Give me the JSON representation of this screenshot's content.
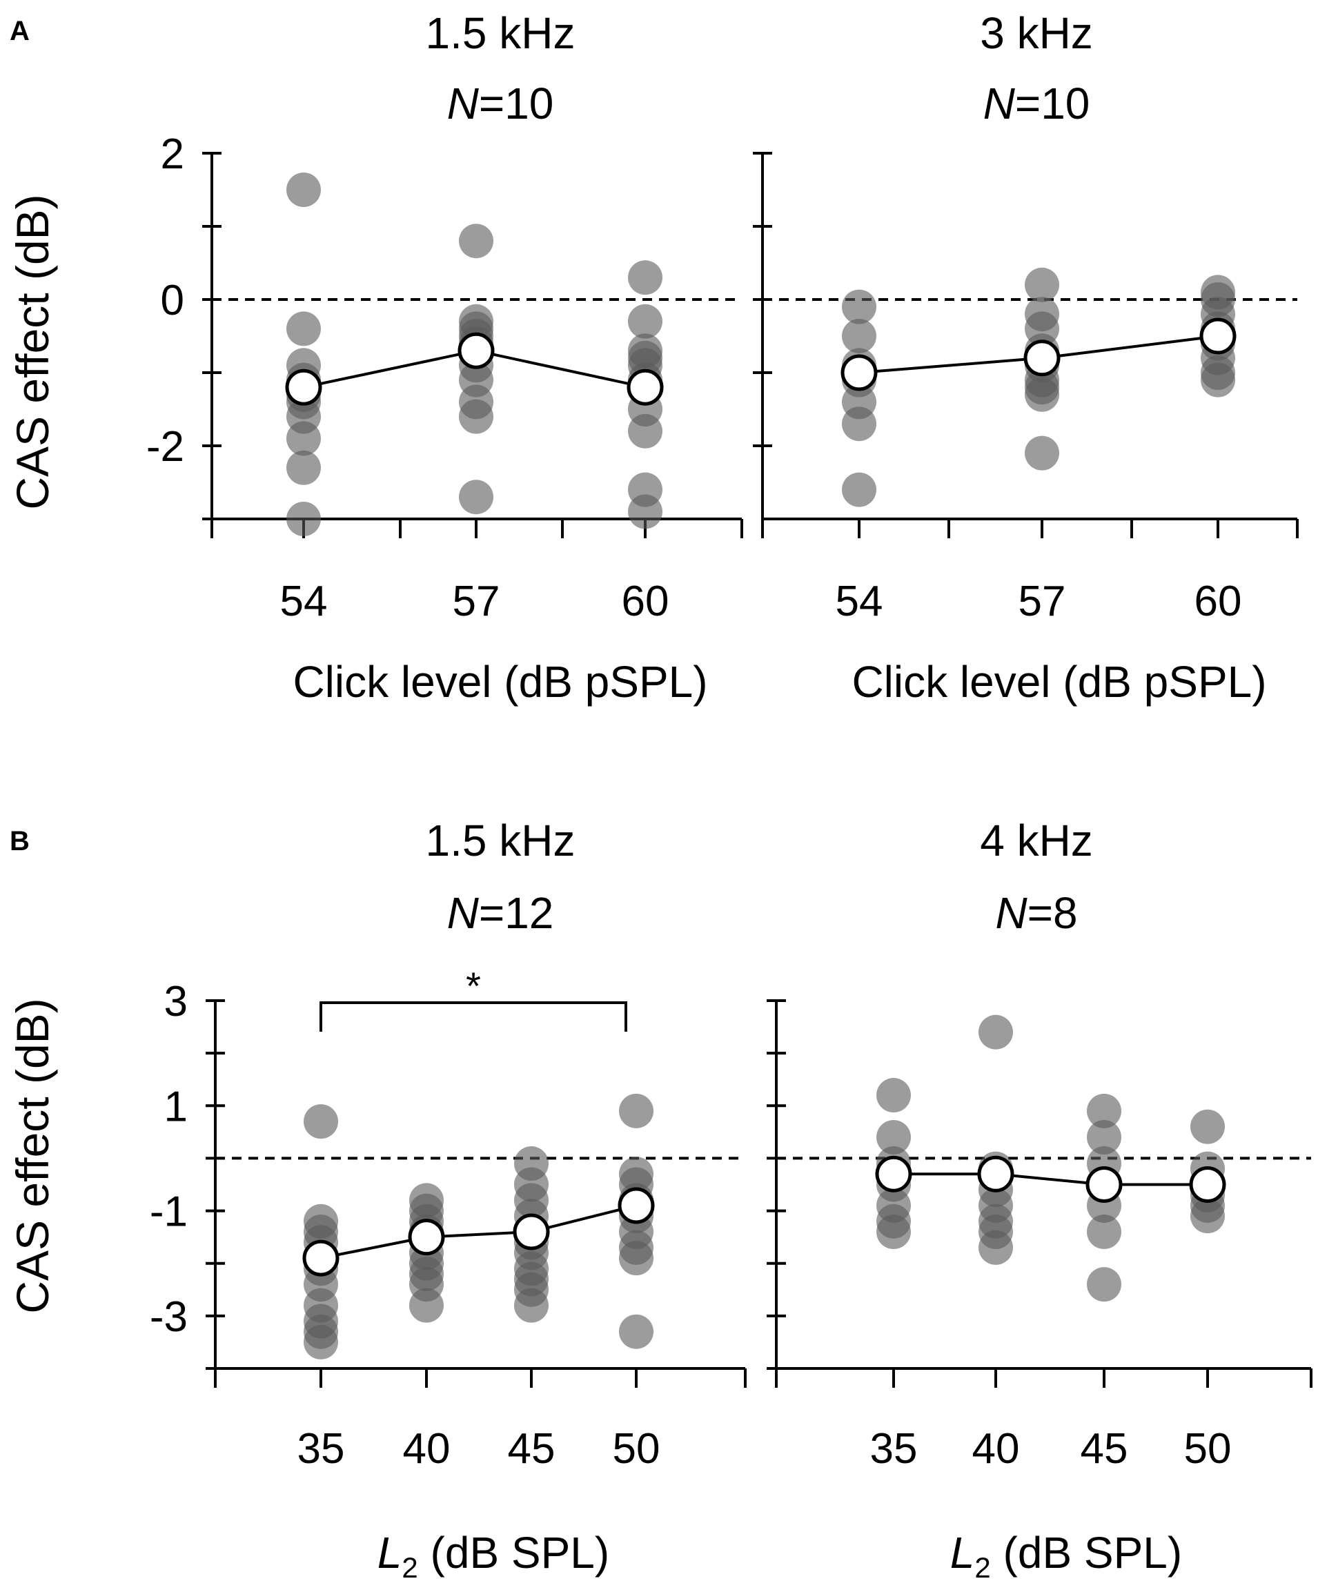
{
  "figure": {
    "panel_labels": [
      "A",
      "B"
    ],
    "colors": {
      "points": "#5a5a5a",
      "mean_fill": "#ffffff",
      "line": "#000000",
      "axis": "#000000"
    }
  },
  "chart_data": [
    {
      "type": "scatter",
      "panel": "A",
      "title": "1.5 kHz",
      "n_label": "N=10",
      "n_italic": "N",
      "n_value": "=10",
      "xlabel": "Click level (dB pSPL)",
      "ylabel": "CAS effect (dB)",
      "categories": [
        "54",
        "57",
        "60"
      ],
      "ylim": [
        -3,
        2
      ],
      "yticks": [
        2,
        0,
        -2
      ],
      "yminor": [
        1,
        -1,
        -3
      ],
      "reference_line": 0,
      "individual": [
        [
          1.5,
          -0.4,
          -0.9,
          -1.1,
          -1.3,
          -1.4,
          -1.6,
          -1.9,
          -2.3,
          -3.0
        ],
        [
          0.8,
          -0.3,
          -0.4,
          -0.5,
          -0.6,
          -0.9,
          -1.1,
          -1.4,
          -1.6,
          -2.7
        ],
        [
          0.3,
          -0.3,
          -0.7,
          -0.8,
          -0.9,
          -1.1,
          -1.5,
          -1.8,
          -2.6,
          -2.9
        ]
      ],
      "mean": [
        -1.2,
        -0.7,
        -1.2
      ]
    },
    {
      "type": "scatter",
      "panel": "A",
      "title": "3 kHz",
      "n_label": "N=10",
      "n_italic": "N",
      "n_value": "=10",
      "xlabel": "Click level (dB pSPL)",
      "ylabel": "",
      "categories": [
        "54",
        "57",
        "60"
      ],
      "ylim": [
        -3,
        2
      ],
      "yticks": [],
      "yminor": [
        2,
        1,
        0,
        -1,
        -2
      ],
      "reference_line": 0,
      "individual": [
        [
          -0.1,
          -0.5,
          -0.9,
          -1.0,
          -1.1,
          -1.4,
          -1.7,
          -2.6
        ],
        [
          0.2,
          -0.2,
          -0.4,
          -0.7,
          -0.9,
          -1.1,
          -1.2,
          -1.3,
          -2.1
        ],
        [
          0.1,
          0.0,
          -0.2,
          -0.4,
          -0.6,
          -0.8,
          -1.0,
          -1.1
        ]
      ],
      "mean": [
        -1.0,
        -0.8,
        -0.5
      ]
    },
    {
      "type": "scatter",
      "panel": "B",
      "title": "1.5 kHz",
      "n_label": "N=12",
      "n_italic": "N",
      "n_value": "=12",
      "xlabel_italic": "L",
      "xlabel_sub": "2",
      "xlabel_rest": " (dB SPL)",
      "ylabel": "CAS effect (dB)",
      "categories": [
        "35",
        "40",
        "45",
        "50"
      ],
      "ylim": [
        -4,
        3
      ],
      "yticks": [
        3,
        1,
        -1,
        -3
      ],
      "yminor": [
        2,
        0,
        -2,
        -4
      ],
      "reference_line": 0,
      "significance": {
        "from": 0,
        "to": 3,
        "label": "*"
      },
      "individual": [
        [
          0.7,
          -1.2,
          -1.4,
          -1.6,
          -1.9,
          -2.1,
          -2.4,
          -2.8,
          -3.1,
          -3.3,
          -3.5
        ],
        [
          -0.8,
          -1.0,
          -1.2,
          -1.4,
          -1.5,
          -1.8,
          -2.0,
          -2.2,
          -2.4,
          -2.8
        ],
        [
          -0.1,
          -0.5,
          -0.8,
          -1.1,
          -1.4,
          -1.6,
          -1.8,
          -2.1,
          -2.3,
          -2.5,
          -2.8
        ],
        [
          0.9,
          -0.3,
          -0.5,
          -0.8,
          -1.1,
          -1.4,
          -1.7,
          -1.9,
          -3.3
        ]
      ],
      "mean": [
        -1.9,
        -1.5,
        -1.4,
        -0.9
      ]
    },
    {
      "type": "scatter",
      "panel": "B",
      "title": "4 kHz",
      "n_label": "N=8",
      "n_italic": "N",
      "n_value": "=8",
      "xlabel_italic": "L",
      "xlabel_sub": "2",
      "xlabel_rest": " (dB SPL)",
      "ylabel": "",
      "categories": [
        "35",
        "40",
        "45",
        "50"
      ],
      "ylim": [
        -4,
        3
      ],
      "yticks": [],
      "yminor": [
        3,
        2,
        1,
        0,
        -1,
        -2,
        -3,
        -4
      ],
      "reference_line": 0,
      "individual": [
        [
          1.2,
          0.4,
          -0.1,
          -0.5,
          -0.9,
          -1.2,
          -1.4
        ],
        [
          2.4,
          -0.2,
          -0.6,
          -0.9,
          -1.2,
          -1.4,
          -1.7
        ],
        [
          0.9,
          0.4,
          -0.1,
          -0.5,
          -0.9,
          -1.4,
          -2.4
        ],
        [
          0.6,
          -0.2,
          -0.5,
          -0.7,
          -0.9,
          -1.1
        ]
      ],
      "mean": [
        -0.3,
        -0.3,
        -0.5,
        -0.5
      ]
    }
  ]
}
